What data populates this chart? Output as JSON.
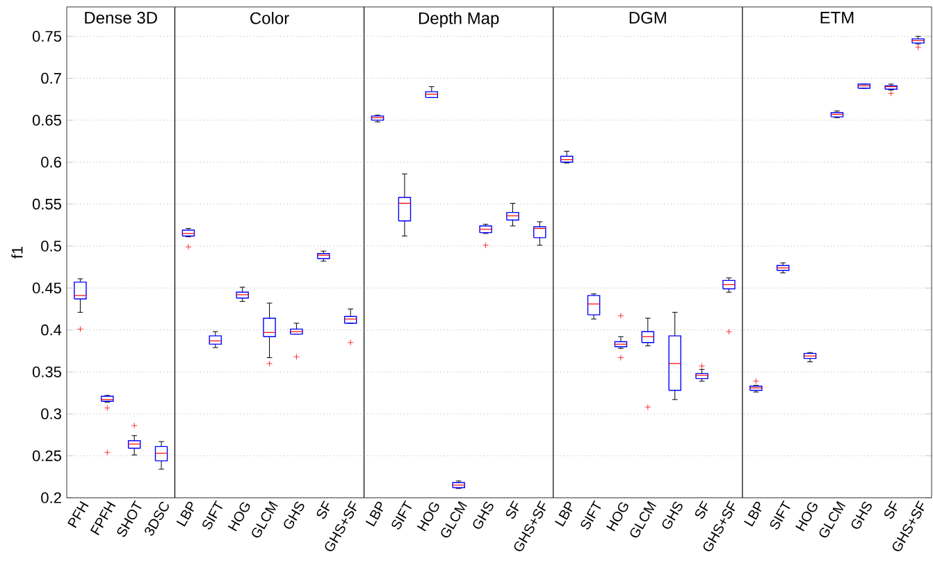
{
  "chart_data": {
    "type": "box",
    "ylabel": "f1",
    "ylim": [
      0.2,
      0.785
    ],
    "yticks": [
      0.2,
      0.25,
      0.3,
      0.35,
      0.4,
      0.45,
      0.5,
      0.55,
      0.6,
      0.65,
      0.7,
      0.75
    ],
    "grid": "y",
    "marker": "cross",
    "categories": [
      "PFH",
      "FPFH",
      "SHOT",
      "3DSC",
      "LBP",
      "SIFT",
      "HOG",
      "GLCM",
      "GHS",
      "SF",
      "GHS+SF",
      "LBP",
      "SIFT",
      "HOG",
      "GLCM",
      "GHS",
      "SF",
      "GHS+SF",
      "LBP",
      "SIFT",
      "HOG",
      "GLCM",
      "GHS",
      "SF",
      "GHS+SF",
      "LBP",
      "SIFT",
      "HOG",
      "GLCM",
      "GHS",
      "SF",
      "GHS+SF"
    ],
    "annotations": [
      "Dense 3D",
      "Color",
      "Depth Map",
      "DGM",
      "ETM"
    ],
    "series": [
      {
        "color": "#0000ff",
        "boxes": [
          {
            "low": 0.421,
            "q1": 0.437,
            "median": 0.441,
            "q3": 0.457,
            "high": 0.461,
            "outliers": [
              0.401
            ]
          },
          {
            "low": 0.314,
            "q1": 0.315,
            "median": 0.317,
            "q3": 0.321,
            "high": 0.322,
            "outliers": [
              0.307,
              0.254
            ]
          },
          {
            "low": 0.251,
            "q1": 0.259,
            "median": 0.264,
            "q3": 0.268,
            "high": 0.274,
            "outliers": [
              0.286
            ]
          },
          {
            "low": 0.234,
            "q1": 0.244,
            "median": 0.253,
            "q3": 0.261,
            "high": 0.267
          },
          {
            "low": 0.511,
            "q1": 0.512,
            "median": 0.515,
            "q3": 0.519,
            "high": 0.521,
            "outliers": [
              0.499
            ]
          },
          {
            "low": 0.379,
            "q1": 0.383,
            "median": 0.387,
            "q3": 0.393,
            "high": 0.398
          },
          {
            "low": 0.434,
            "q1": 0.438,
            "median": 0.442,
            "q3": 0.445,
            "high": 0.451
          },
          {
            "low": 0.367,
            "q1": 0.392,
            "median": 0.397,
            "q3": 0.414,
            "high": 0.432,
            "outliers": [
              0.36
            ]
          },
          {
            "low": 0.395,
            "q1": 0.395,
            "median": 0.398,
            "q3": 0.401,
            "high": 0.408,
            "outliers": [
              0.368
            ]
          },
          {
            "low": 0.482,
            "q1": 0.485,
            "median": 0.489,
            "q3": 0.491,
            "high": 0.494
          },
          {
            "low": 0.408,
            "q1": 0.408,
            "median": 0.413,
            "q3": 0.416,
            "high": 0.425,
            "outliers": [
              0.385
            ]
          },
          {
            "low": 0.648,
            "q1": 0.65,
            "median": 0.653,
            "q3": 0.655,
            "high": 0.656
          },
          {
            "low": 0.512,
            "q1": 0.53,
            "median": 0.551,
            "q3": 0.558,
            "high": 0.586
          },
          {
            "low": 0.677,
            "q1": 0.677,
            "median": 0.681,
            "q3": 0.684,
            "high": 0.69
          },
          {
            "low": 0.211,
            "q1": 0.212,
            "median": 0.215,
            "q3": 0.218,
            "high": 0.22
          },
          {
            "low": 0.515,
            "q1": 0.516,
            "median": 0.52,
            "q3": 0.524,
            "high": 0.526,
            "outliers": [
              0.501
            ]
          },
          {
            "low": 0.524,
            "q1": 0.531,
            "median": 0.536,
            "q3": 0.54,
            "high": 0.551
          },
          {
            "low": 0.501,
            "q1": 0.51,
            "median": 0.521,
            "q3": 0.523,
            "high": 0.529
          },
          {
            "low": 0.599,
            "q1": 0.6,
            "median": 0.603,
            "q3": 0.607,
            "high": 0.613
          },
          {
            "low": 0.413,
            "q1": 0.418,
            "median": 0.431,
            "q3": 0.441,
            "high": 0.443
          },
          {
            "low": 0.378,
            "q1": 0.38,
            "median": 0.383,
            "q3": 0.386,
            "high": 0.392,
            "outliers": [
              0.417,
              0.367
            ]
          },
          {
            "low": 0.381,
            "q1": 0.385,
            "median": 0.392,
            "q3": 0.398,
            "high": 0.414,
            "outliers": [
              0.308
            ]
          },
          {
            "low": 0.317,
            "q1": 0.328,
            "median": 0.36,
            "q3": 0.393,
            "high": 0.421
          },
          {
            "low": 0.339,
            "q1": 0.342,
            "median": 0.346,
            "q3": 0.348,
            "high": 0.353,
            "outliers": [
              0.357
            ]
          },
          {
            "low": 0.445,
            "q1": 0.449,
            "median": 0.454,
            "q3": 0.459,
            "high": 0.462,
            "outliers": [
              0.398
            ]
          },
          {
            "low": 0.326,
            "q1": 0.328,
            "median": 0.331,
            "q3": 0.333,
            "high": 0.334,
            "outliers": [
              0.339
            ]
          },
          {
            "low": 0.468,
            "q1": 0.471,
            "median": 0.474,
            "q3": 0.477,
            "high": 0.48
          },
          {
            "low": 0.362,
            "q1": 0.366,
            "median": 0.369,
            "q3": 0.372,
            "high": 0.373
          },
          {
            "low": 0.653,
            "q1": 0.654,
            "median": 0.657,
            "q3": 0.659,
            "high": 0.661
          },
          {
            "low": 0.688,
            "q1": 0.688,
            "median": 0.691,
            "q3": 0.693,
            "high": 0.693
          },
          {
            "low": 0.686,
            "q1": 0.687,
            "median": 0.69,
            "q3": 0.691,
            "high": 0.693,
            "outliers": [
              0.682
            ]
          },
          {
            "low": 0.741,
            "q1": 0.742,
            "median": 0.745,
            "q3": 0.747,
            "high": 0.75,
            "outliers": [
              0.737
            ]
          }
        ]
      }
    ]
  }
}
